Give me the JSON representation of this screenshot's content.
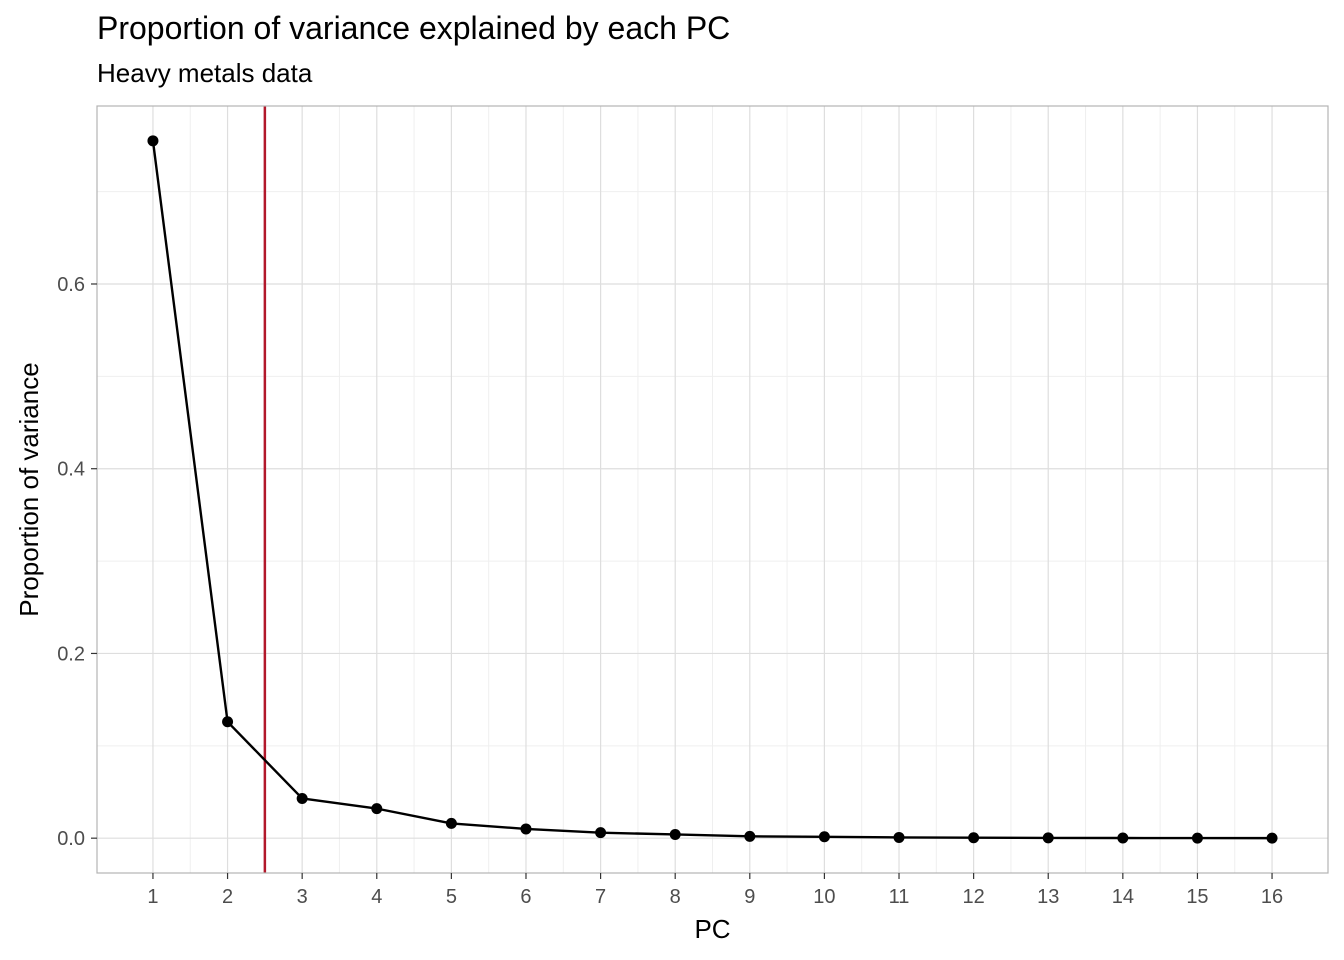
{
  "chart_data": {
    "type": "line",
    "title": "Proportion of variance explained by each PC",
    "subtitle": "Heavy metals data",
    "xlabel": "PC",
    "ylabel": "Proportion of variance",
    "x": [
      1,
      2,
      3,
      4,
      5,
      6,
      7,
      8,
      9,
      10,
      11,
      12,
      13,
      14,
      15,
      16
    ],
    "x_tick_labels": [
      "1",
      "2",
      "3",
      "4",
      "5",
      "6",
      "7",
      "8",
      "9",
      "10",
      "11",
      "12",
      "13",
      "14",
      "15",
      "16"
    ],
    "y_ticks": [
      0.0,
      0.2,
      0.4,
      0.6
    ],
    "y_tick_labels": [
      "0.0",
      "0.2",
      "0.4",
      "0.6"
    ],
    "values": [
      0.755,
      0.126,
      0.043,
      0.032,
      0.016,
      0.01,
      0.006,
      0.004,
      0.002,
      0.0015,
      0.0008,
      0.0005,
      0.0003,
      0.0002,
      0.0001,
      5e-05
    ],
    "xlim": [
      0.25,
      16.75
    ],
    "ylim": [
      -0.0377,
      0.7927
    ],
    "vline": {
      "x": 2.5,
      "color": "#b2182b"
    },
    "line_color": "#000000",
    "point_color": "#000000",
    "grid": true,
    "panel_border_color": "#b3b3b3",
    "grid_major_color": "#dedede",
    "grid_minor_color": "#efefef"
  }
}
